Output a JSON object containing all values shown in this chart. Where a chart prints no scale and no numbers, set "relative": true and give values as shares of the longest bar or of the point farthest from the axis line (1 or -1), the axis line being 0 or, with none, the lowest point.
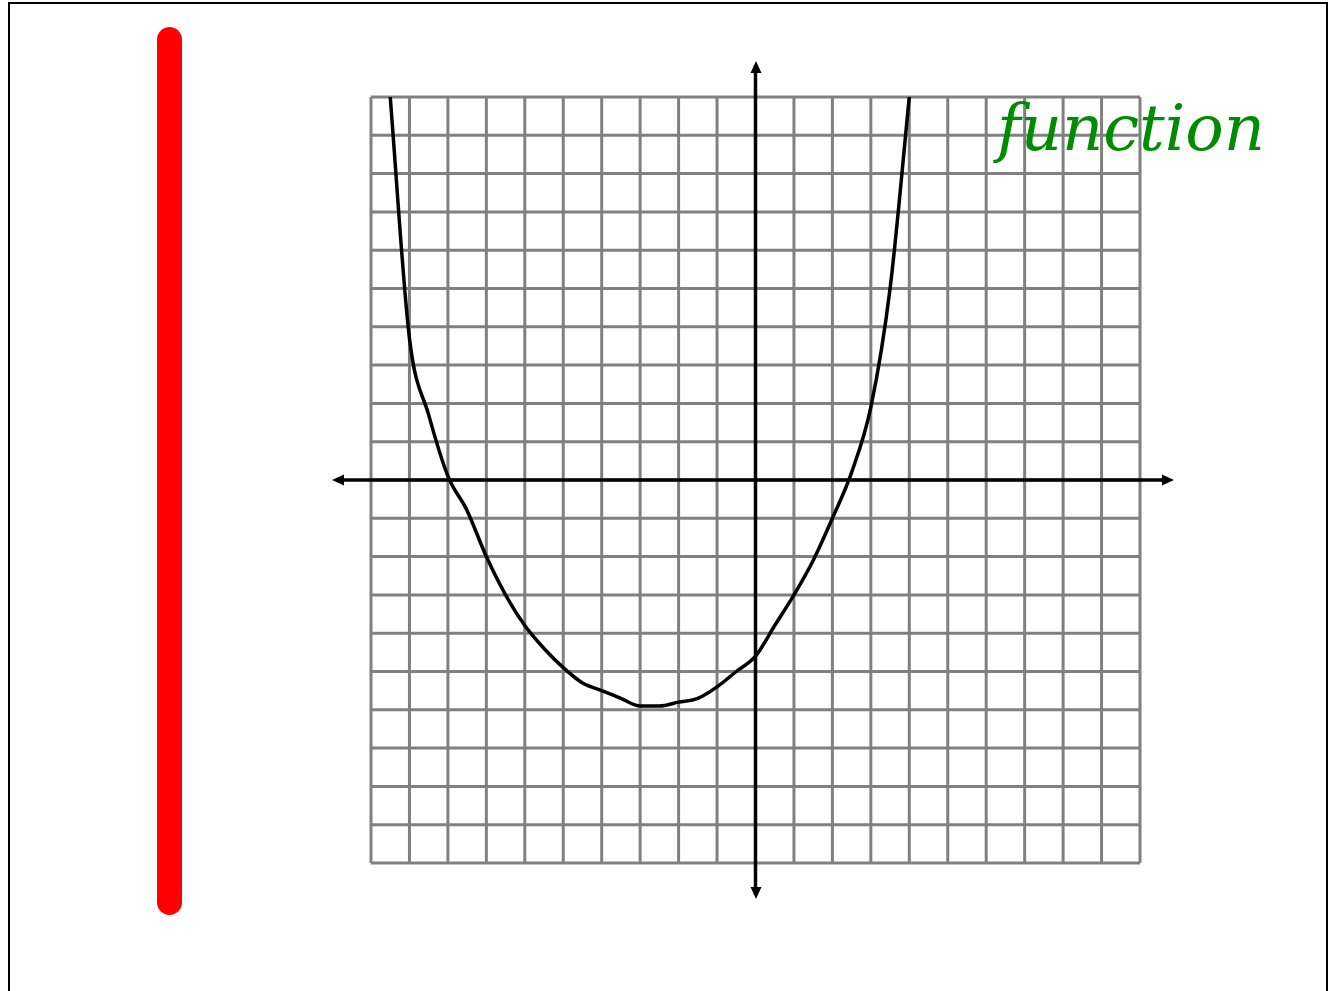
{
  "chart_data": {
    "type": "line",
    "title": "function",
    "relative": true,
    "grid": true,
    "marker": "none",
    "categories": [
      null,
      null,
      null,
      null,
      null,
      null,
      null,
      null,
      null,
      null,
      null,
      null,
      null,
      null,
      null,
      null,
      null,
      null,
      null,
      null,
      null,
      null,
      null,
      null,
      null,
      null,
      null,
      null,
      null,
      null,
      null,
      null,
      null,
      null,
      null,
      null,
      null,
      null,
      null,
      null,
      null
    ],
    "series": [
      {
        "color": "#000000",
        "values": [
          null,
          1,
          0.37,
          0.17,
          0.01,
          -0.08,
          -0.2,
          -0.3,
          -0.38,
          -0.44,
          -0.49,
          -0.53,
          -0.55,
          -0.57,
          -0.59,
          -0.59,
          -0.58,
          -0.57,
          -0.54,
          -0.5,
          -0.46,
          -0.38,
          -0.3,
          -0.21,
          -0.1,
          0.02,
          0.19,
          0.5,
          1,
          null,
          null,
          null,
          null,
          null,
          null,
          null,
          null,
          null,
          null,
          null,
          null
        ]
      }
    ]
  }
}
